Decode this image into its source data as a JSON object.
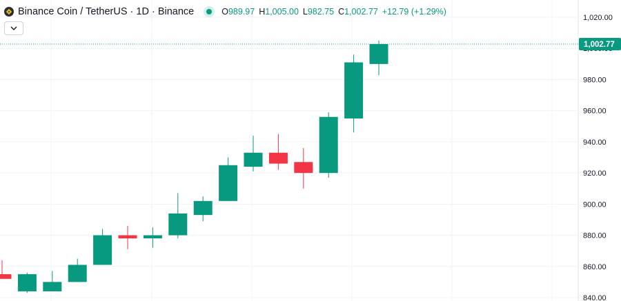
{
  "header": {
    "symbol_title": "Binance Coin / TetherUS · 1D · Binance",
    "ohlc": {
      "open_label": "O",
      "open_value": "989.97",
      "high_label": "H",
      "high_value": "1,005.00",
      "low_label": "L",
      "low_value": "982.75",
      "close_label": "C",
      "close_value": "1,002.77",
      "change": "+12.79 (+1.29%)"
    }
  },
  "colors": {
    "up": "#089981",
    "down": "#f23645",
    "last_price_line": "#089981"
  },
  "icons": {
    "symbol": "binance-coin-icon",
    "status": "market-open-dot-icon",
    "collapse": "chevron-down-icon"
  },
  "chart_data": {
    "type": "candlestick",
    "title": "Binance Coin / TetherUS · 1D · Binance",
    "y_axis": {
      "ticks": [
        840,
        860,
        880,
        900,
        920,
        940,
        960,
        980,
        1000,
        1020
      ],
      "tick_labels": [
        "840.00",
        "860.00",
        "880.00",
        "900.00",
        "920.00",
        "940.00",
        "960.00",
        "980.00",
        "1,000.00",
        "1,020.00"
      ],
      "range": [
        838,
        1036
      ],
      "position": "right"
    },
    "last_price": 1002.77,
    "last_price_label": "1,002.77",
    "grid": true,
    "candles": [
      {
        "o": 855,
        "h": 864,
        "l": 852,
        "c": 852
      },
      {
        "o": 844,
        "h": 856,
        "l": 843,
        "c": 855
      },
      {
        "o": 844,
        "h": 857,
        "l": 844,
        "c": 850
      },
      {
        "o": 850,
        "h": 865,
        "l": 850,
        "c": 861
      },
      {
        "o": 861,
        "h": 884,
        "l": 861,
        "c": 880
      },
      {
        "o": 880,
        "h": 886,
        "l": 871,
        "c": 878
      },
      {
        "o": 878,
        "h": 885,
        "l": 872,
        "c": 880
      },
      {
        "o": 880,
        "h": 907,
        "l": 878,
        "c": 894
      },
      {
        "o": 893,
        "h": 905,
        "l": 889,
        "c": 902
      },
      {
        "o": 902,
        "h": 930,
        "l": 902,
        "c": 925
      },
      {
        "o": 924,
        "h": 944,
        "l": 921,
        "c": 933
      },
      {
        "o": 933,
        "h": 945,
        "l": 922,
        "c": 926
      },
      {
        "o": 927,
        "h": 936,
        "l": 910,
        "c": 920
      },
      {
        "o": 920,
        "h": 959,
        "l": 917,
        "c": 956
      },
      {
        "o": 955,
        "h": 996,
        "l": 946,
        "c": 991
      },
      {
        "o": 989.97,
        "h": 1005,
        "l": 982.75,
        "c": 1002.77
      }
    ]
  }
}
